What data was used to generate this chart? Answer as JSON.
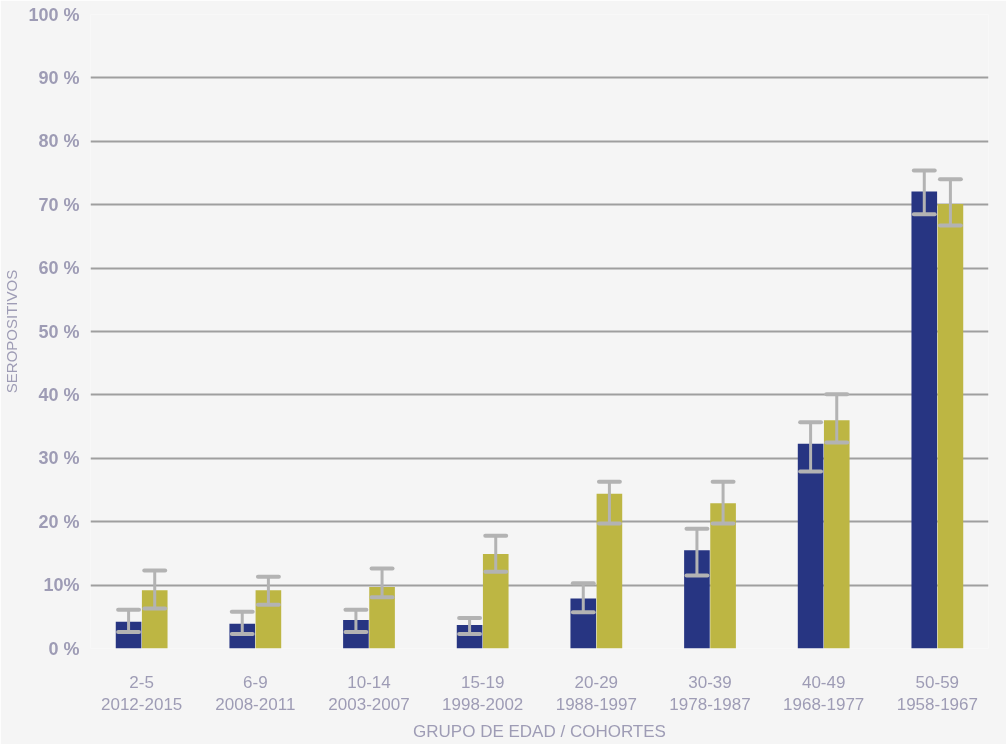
{
  "chart_data": {
    "type": "bar",
    "xlabel": "GRUPO DE EDAD / COHORTES",
    "ylabel": "SEROPOSITIVOS",
    "categories": [
      "2-5\n2012-2015",
      "6-9\n2008-2011",
      "10-14\n2003-2007",
      "15-19\n1998-2002",
      "20-29\n1988-1997",
      "30-39\n1978-1987",
      "40-49\n1968-1977",
      "50-59\n1958-1967"
    ],
    "series": [
      {
        "color": "#273582",
        "values": [
          4.2,
          3.9,
          4.5,
          3.7,
          7.9,
          15.5,
          32.3,
          72.1
        ],
        "errors": [
          [
            2.6,
            6.1
          ],
          [
            2.3,
            5.8
          ],
          [
            2.6,
            6.1
          ],
          [
            2.3,
            4.8
          ],
          [
            5.7,
            10.3
          ],
          [
            11.5,
            18.9
          ],
          [
            27.9,
            35.7
          ],
          [
            68.5,
            75.4
          ]
        ]
      },
      {
        "color": "#bdb643",
        "values": [
          9.2,
          9.2,
          9.7,
          14.9,
          24.4,
          22.9,
          36.0,
          70.1
        ],
        "errors": [
          [
            6.3,
            12.3
          ],
          [
            6.9,
            11.3
          ],
          [
            8.1,
            12.6
          ],
          [
            12.1,
            17.8
          ],
          [
            19.7,
            26.3
          ],
          [
            19.7,
            26.3
          ],
          [
            32.5,
            40.1
          ],
          [
            66.7,
            74.0
          ]
        ]
      }
    ],
    "ylim": [
      0,
      100
    ],
    "yticks": [
      {
        "value": 0,
        "label": "0 %"
      },
      {
        "value": 10,
        "label": "10%"
      },
      {
        "value": 20,
        "label": "20 %"
      },
      {
        "value": 30,
        "label": "30 %"
      },
      {
        "value": 40,
        "label": "40 %"
      },
      {
        "value": 50,
        "label": "50 %"
      },
      {
        "value": 60,
        "label": "60 %"
      },
      {
        "value": 70,
        "label": "70 %"
      },
      {
        "value": 80,
        "label": "80 %"
      },
      {
        "value": 90,
        "label": "90 %"
      },
      {
        "value": 100,
        "label": "100 %"
      }
    ],
    "grid": "y"
  }
}
